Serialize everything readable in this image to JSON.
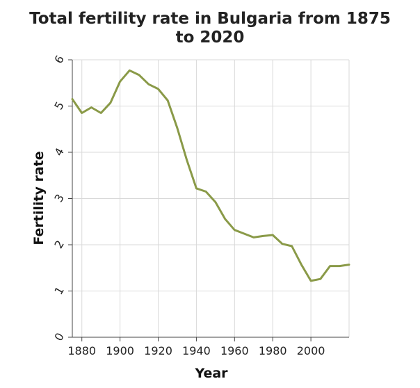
{
  "chart_data": {
    "type": "line",
    "title_lines": [
      "Total fertility rate in Bulgaria from 1875",
      "to 2020"
    ],
    "xlabel": "Year",
    "ylabel": "Fertility rate",
    "xlim": [
      1875,
      2020
    ],
    "ylim": [
      0,
      6
    ],
    "x_ticks": [
      1880,
      1900,
      1920,
      1940,
      1960,
      1980,
      2000
    ],
    "y_ticks": [
      0,
      1,
      2,
      3,
      4,
      5,
      6
    ],
    "grid": true,
    "series_color": "#8a9a48",
    "x": [
      1875,
      1880,
      1885,
      1890,
      1895,
      1900,
      1905,
      1910,
      1915,
      1920,
      1925,
      1930,
      1935,
      1940,
      1945,
      1950,
      1955,
      1960,
      1965,
      1970,
      1975,
      1980,
      1985,
      1990,
      1995,
      2000,
      2005,
      2010,
      2015,
      2020
    ],
    "y": [
      5.15,
      4.85,
      4.97,
      4.85,
      5.07,
      5.53,
      5.77,
      5.67,
      5.47,
      5.37,
      5.12,
      4.52,
      3.83,
      3.22,
      3.15,
      2.92,
      2.56,
      2.32,
      2.24,
      2.16,
      2.19,
      2.21,
      2.02,
      1.97,
      1.57,
      1.22,
      1.26,
      1.54,
      1.54,
      1.57
    ]
  }
}
